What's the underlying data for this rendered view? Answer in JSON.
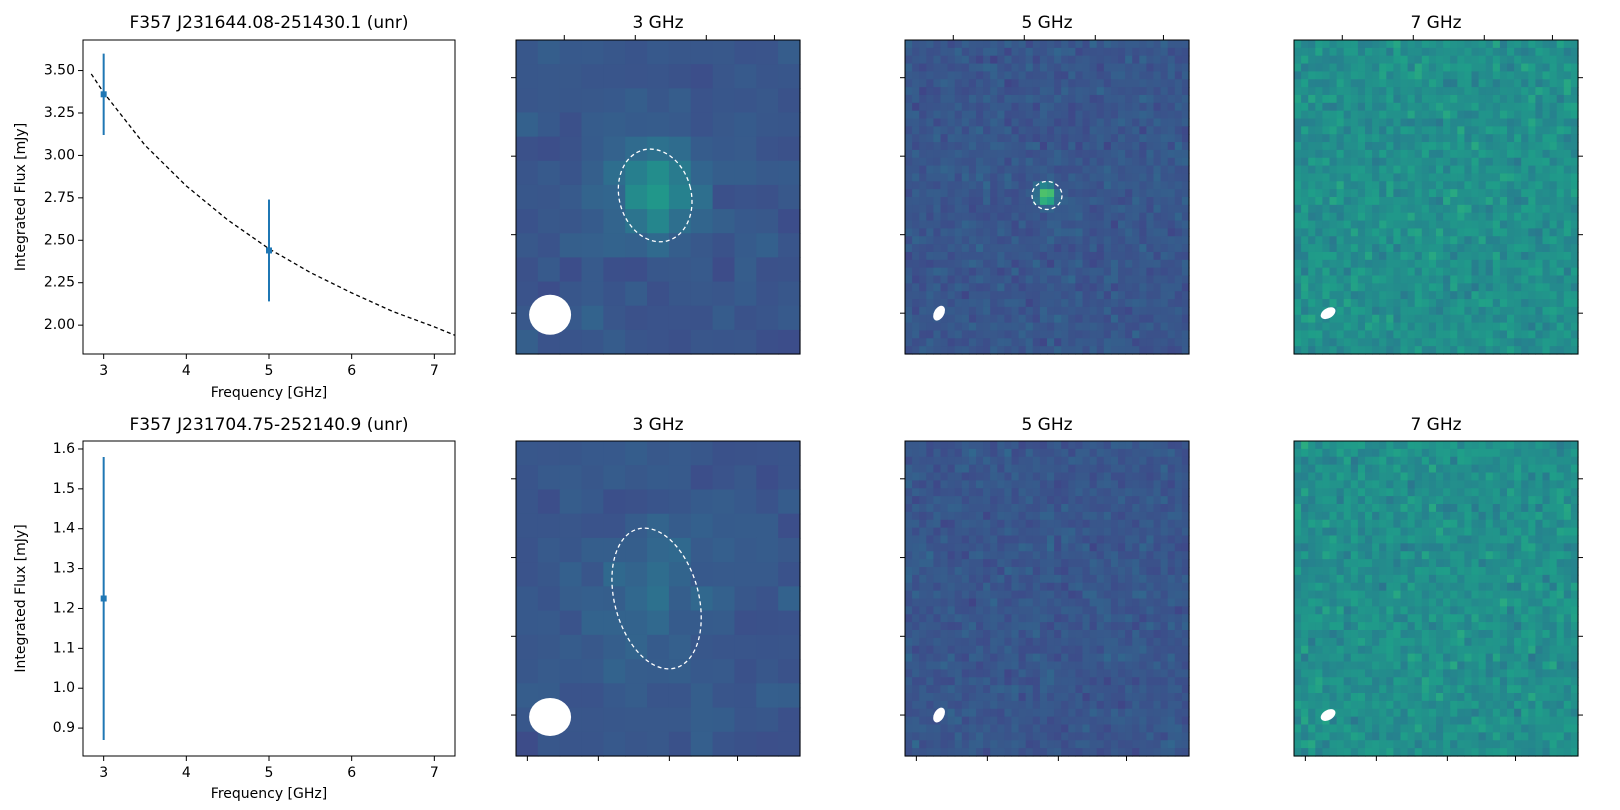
{
  "chart_data": [
    {
      "type": "scatter",
      "title": "F357 J231644.08-251430.1 (unr)",
      "x_label": "Frequency [GHz]",
      "y_label": "Integrated Flux [mJy]",
      "x": [
        3,
        5
      ],
      "values": [
        3.36,
        2.44
      ],
      "errors": [
        0.24,
        0.3
      ],
      "color": "#1f77b4",
      "fit": {
        "x": [
          2.85,
          3,
          3.5,
          4,
          4.5,
          5,
          5.5,
          6,
          6.5,
          7,
          7.25
        ],
        "values": [
          3.48,
          3.37,
          3.06,
          2.82,
          2.62,
          2.45,
          2.31,
          2.19,
          2.08,
          1.99,
          1.94
        ],
        "color": "#000000"
      },
      "xlim": [
        2.75,
        7.25
      ],
      "xticks": [
        3,
        4,
        5,
        6,
        7
      ],
      "ylim": [
        1.83,
        3.68
      ],
      "yticks": [
        {
          "value": 2,
          "label": "2.00"
        },
        {
          "value": 2.25,
          "label": "2.25"
        },
        {
          "value": 2.5,
          "label": "2.50"
        },
        {
          "value": 2.75,
          "label": "2.75"
        },
        {
          "value": 3,
          "label": "3.00"
        },
        {
          "value": 3.25,
          "label": "3.25"
        },
        {
          "value": 3.5,
          "label": "3.50"
        }
      ]
    },
    {
      "type": "scatter",
      "title": "F357 J231704.75-252140.9 (unr)",
      "x_label": "Frequency [GHz]",
      "y_label": "Integrated Flux [mJy]",
      "x": [
        3
      ],
      "values": [
        1.225
      ],
      "errors": [
        0.355
      ],
      "color": "#1f77b4",
      "xlim": [
        2.75,
        7.25
      ],
      "xticks": [
        3,
        4,
        5,
        6,
        7
      ],
      "ylim": [
        0.83,
        1.62
      ],
      "yticks": [
        0.9,
        {
          "value": 1,
          "label": "1.0"
        },
        1.1,
        1.2,
        1.3,
        1.4,
        1.5,
        1.6
      ]
    }
  ],
  "image_panels": [
    {
      "titles": [
        "3 GHz",
        "5 GHz",
        "7 GHz"
      ]
    },
    {
      "titles": [
        "3 GHz",
        "5 GHz",
        "7 GHz"
      ]
    }
  ]
}
